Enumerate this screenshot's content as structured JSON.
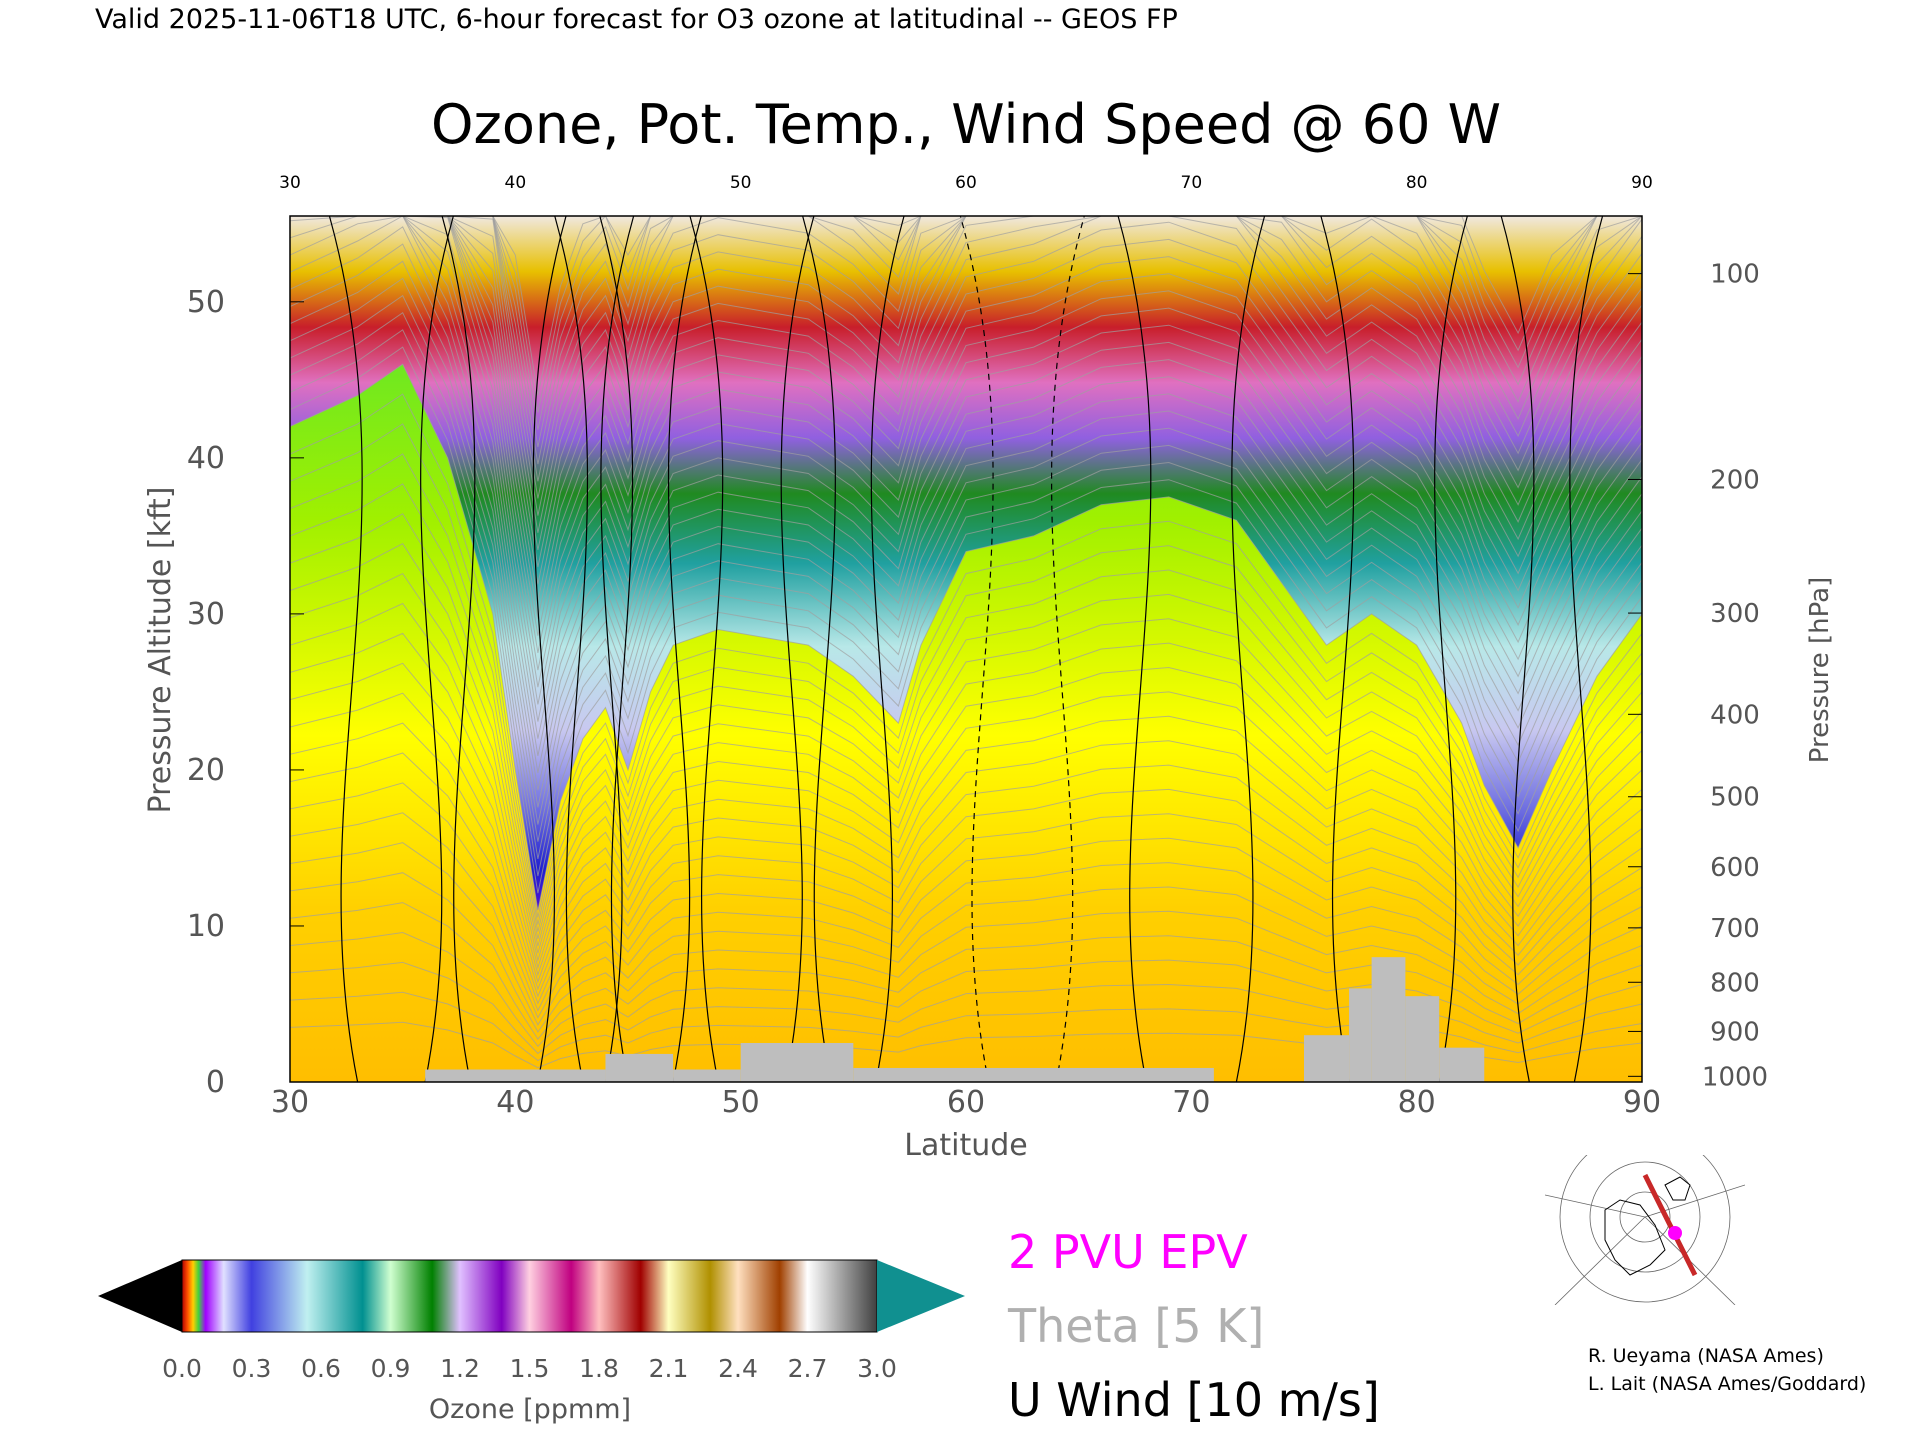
{
  "header": {
    "valid_line": "Valid 2025-11-06T18 UTC, 6-hour forecast for O3 ozone at latitudinal -- GEOS FP"
  },
  "chart_data": {
    "type": "heatmap",
    "title": "Ozone, Pot. Temp., Wind Speed @ 60 W",
    "xlabel": "Latitude",
    "ylabel": "Pressure Altitude [kft]",
    "ylabel_right": "Pressure [hPa]",
    "xlim": [
      30,
      90
    ],
    "ylim": [
      0,
      55.5
    ],
    "x_ticks": [
      30,
      40,
      50,
      60,
      70,
      80,
      90
    ],
    "y_ticks": [
      0,
      10,
      20,
      30,
      40,
      50
    ],
    "pressure_ticks": [
      100,
      200,
      300,
      400,
      500,
      600,
      700,
      800,
      900,
      1000
    ],
    "tropopause_kft": [
      [
        30,
        42
      ],
      [
        33,
        44
      ],
      [
        35,
        46
      ],
      [
        37,
        40
      ],
      [
        39,
        30
      ],
      [
        40,
        20
      ],
      [
        41,
        11
      ],
      [
        42,
        18
      ],
      [
        43,
        22
      ],
      [
        44,
        24
      ],
      [
        45,
        20
      ],
      [
        46,
        25
      ],
      [
        47,
        28
      ],
      [
        49,
        29
      ],
      [
        51,
        28.5
      ],
      [
        53,
        28
      ],
      [
        55,
        26
      ],
      [
        57,
        23
      ],
      [
        58,
        28
      ],
      [
        60,
        34
      ],
      [
        63,
        35
      ],
      [
        66,
        37
      ],
      [
        69,
        37.5
      ],
      [
        72,
        36
      ],
      [
        74,
        32
      ],
      [
        76,
        28
      ],
      [
        78,
        30
      ],
      [
        80,
        28
      ],
      [
        82,
        23
      ],
      [
        83,
        19
      ],
      [
        84.5,
        15
      ],
      [
        86,
        20
      ],
      [
        88,
        26
      ],
      [
        90,
        30
      ]
    ],
    "colorbar": {
      "label": "Ozone [ppmm]",
      "ticks": [
        "0.0",
        "0.3",
        "0.6",
        "0.9",
        "1.2",
        "1.5",
        "1.8",
        "2.1",
        "2.4",
        "2.7",
        "3.0"
      ],
      "range": [
        0,
        3.0
      ]
    },
    "legend": {
      "epv": "2 PVU EPV",
      "theta": "Theta [5 K]",
      "uwind": "U Wind [10 m/s]"
    },
    "colors": {
      "epv": "#ff00ff",
      "theta": "#a0a0a0",
      "uwind": "#000000",
      "terrain": "#bebebe"
    }
  },
  "credits": {
    "line1": "R. Ueyama (NASA Ames)",
    "line2": "L. Lait (NASA Ames/Goddard)"
  }
}
